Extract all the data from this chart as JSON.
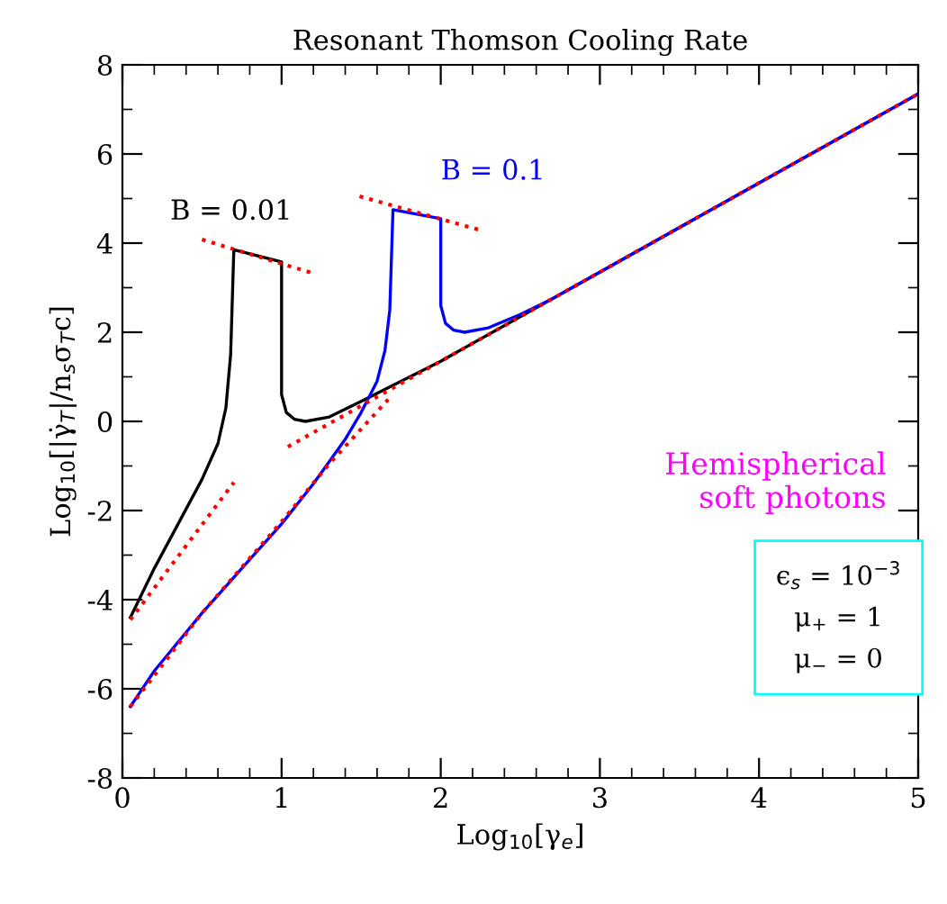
{
  "chart_data": {
    "type": "line",
    "title": "Resonant Thomson Cooling Rate",
    "xlabel": "Log$_{10}$[γ$_{e}$]",
    "ylabel": "Log$_{10}$[|γ̇$_{T}$|/n$_{s}$σ$_{T}$c]",
    "xlim": [
      0,
      5
    ],
    "ylim": [
      -8,
      8
    ],
    "xticks": [
      0,
      1,
      2,
      3,
      4,
      5
    ],
    "yticks": [
      -8,
      -6,
      -4,
      -2,
      0,
      2,
      4,
      6,
      8
    ],
    "grid": false,
    "legend": false,
    "line_style": "solid",
    "series": [
      {
        "name": "B = 0.01",
        "color": "#000000",
        "x": [
          0.05,
          0.2,
          0.35,
          0.5,
          0.6,
          0.65,
          0.68,
          0.7,
          1.0,
          1.0,
          1.03,
          1.08,
          1.15,
          1.3,
          1.5,
          1.75,
          2,
          3,
          5
        ],
        "values": [
          -4.4,
          -3.3,
          -2.3,
          -1.3,
          -0.5,
          0.3,
          1.5,
          3.85,
          3.58,
          0.6,
          0.2,
          0.05,
          0.0,
          0.1,
          0.45,
          0.9,
          1.35,
          3.35,
          7.35
        ]
      },
      {
        "name": "B = 0.1",
        "color": "#0000ff",
        "x": [
          0.05,
          0.2,
          0.5,
          0.8,
          1.0,
          1.2,
          1.4,
          1.5,
          1.6,
          1.65,
          1.68,
          1.7,
          2.0,
          2.0,
          2.03,
          2.08,
          2.15,
          2.3,
          2.5,
          2.7,
          3,
          4,
          5
        ],
        "values": [
          -6.4,
          -5.6,
          -4.3,
          -3.1,
          -2.3,
          -1.4,
          -0.4,
          0.2,
          0.9,
          1.6,
          2.5,
          4.75,
          4.55,
          2.6,
          2.2,
          2.05,
          2.0,
          2.1,
          2.4,
          2.75,
          3.35,
          5.35,
          7.35
        ]
      },
      {
        "color": "#ff0000",
        "line_style": "dotted",
        "x": [
          0.05,
          0.7
        ],
        "values": [
          -4.45,
          -1.37
        ]
      },
      {
        "color": "#ff0000",
        "line_style": "dotted",
        "x": [
          0.5,
          1.21
        ],
        "values": [
          4.08,
          3.31
        ]
      },
      {
        "color": "#ff0000",
        "line_style": "dotted",
        "x": [
          1.49,
          2.26
        ],
        "values": [
          5.05,
          4.28
        ]
      },
      {
        "color": "#ff0000",
        "line_style": "dotted",
        "x": [
          1.04,
          5
        ],
        "values": [
          -0.57,
          7.35
        ]
      },
      {
        "color": "#ff0000",
        "line_style": "dotted",
        "x": [
          0.05,
          0.5,
          1.0,
          1.3,
          1.69
        ],
        "values": [
          -6.4,
          -4.3,
          -2.25,
          -0.95,
          0.57
        ]
      }
    ],
    "annotations": [
      "Hemispherical\nsoft photons",
      "ϵ$_{s}$ = 10$^{−3}$\nμ$_{+}$ = 1\nμ$_{−}$ = 0"
    ]
  }
}
